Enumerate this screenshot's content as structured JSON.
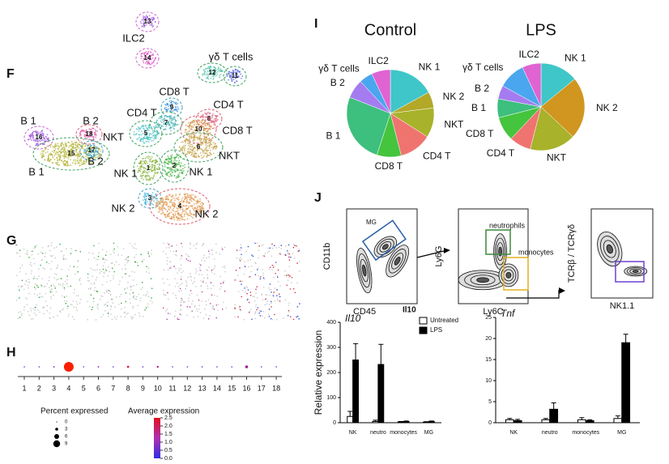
{
  "panels": [
    "F",
    "G",
    "H",
    "I",
    "J"
  ],
  "umap": {
    "clusters": [
      "13",
      "14",
      "12",
      "11",
      "9",
      "8",
      "7",
      "10",
      "5",
      "6",
      "18",
      "16",
      "15",
      "17",
      "1",
      "2",
      "3",
      "4"
    ],
    "cell_types": [
      "ILC2",
      "γδ T cells",
      "CD8 T",
      "CD4 T",
      "CD4 T",
      "CD8 T",
      "NKT",
      "NKT",
      "B 1",
      "B 2",
      "B 1",
      "B 2",
      "NK 1",
      "NK 1",
      "NK 2",
      "NK 2"
    ]
  },
  "flow": {
    "plots": [
      {
        "x": "CD45",
        "y": "CD11b",
        "gates": [
          "MG"
        ]
      },
      {
        "x": "Ly6C",
        "y": "Ly6G",
        "gates": [
          "neutrophils",
          "monocytes"
        ]
      },
      {
        "x": "NK1.1",
        "y": "TCRβ / TCRγδ",
        "gates": []
      }
    ],
    "note": "Il10"
  },
  "chart_data": [
    {
      "type": "dot",
      "categories": [
        "1",
        "2",
        "3",
        "4",
        "5",
        "6",
        "7",
        "8",
        "9",
        "10",
        "11",
        "12",
        "13",
        "14",
        "15",
        "16",
        "17",
        "18"
      ],
      "values": [
        0.3,
        0.3,
        0.5,
        9,
        0.3,
        0.5,
        0.3,
        1.2,
        0.3,
        1,
        0.3,
        0.3,
        0.3,
        0.3,
        0.3,
        2,
        0.3,
        0.3
      ],
      "color_values": [
        0.3,
        0.3,
        1,
        2.5,
        0.5,
        0.8,
        0.4,
        2,
        0.3,
        1.5,
        0.3,
        0.4,
        0.3,
        0.4,
        0.3,
        1.3,
        0.3,
        0.3
      ],
      "size_legend": {
        "title": "Percent expressed",
        "values": [
          0,
          3,
          6,
          9
        ]
      },
      "color_legend": {
        "title": "Average expression",
        "ticks": [
          2.5,
          {
            "value": 2,
            "label": "2.0"
          },
          1.5,
          {
            "value": 1,
            "label": "1.0"
          },
          0.5,
          {
            "value": 0,
            "label": "0.0"
          }
        ]
      }
    },
    {
      "type": "pie",
      "title": "Control",
      "categories": [
        "NK 1",
        "NK 2",
        "NKT",
        "CD4 T",
        "CD8 T",
        "B 1",
        "B 2",
        "γδ T cells",
        "ILC2"
      ],
      "values": [
        17,
        6,
        11,
        12,
        9,
        26,
        7,
        5,
        7
      ],
      "colors": [
        "#3fc6c8",
        "#b3a828",
        "#a8b22a",
        "#ef7470",
        "#45c43e",
        "#3dbf7e",
        "#a57cf0",
        "#4aa6ef",
        "#e063d2"
      ]
    },
    {
      "type": "pie",
      "title": "LPS",
      "categories": [
        "NK 1",
        "NK 2",
        "NKT",
        "CD4 T",
        "CD8 T",
        "B 1",
        "B 2",
        "γδ T cells",
        "ILC2"
      ],
      "values": [
        14,
        23,
        17,
        8,
        9,
        7,
        5,
        10,
        7
      ],
      "colors": [
        "#3fc6c8",
        "#d0961f",
        "#a8b22a",
        "#ef7470",
        "#45c43e",
        "#3dbf7e",
        "#a57cf0",
        "#4aa6ef",
        "#e063d2"
      ]
    },
    {
      "type": "bar",
      "title": "Il10",
      "ylabel": "Relative expression",
      "categories": [
        "NK",
        "neutro",
        "monocytes",
        "MG"
      ],
      "series": [
        {
          "name": "Untreated",
          "color": "#ffffff",
          "values": [
            25,
            5,
            3,
            2
          ],
          "errors": [
            20,
            5,
            2,
            2
          ]
        },
        {
          "name": "LPS",
          "color": "#000000",
          "values": [
            250,
            232,
            5,
            5
          ],
          "errors": [
            65,
            80,
            2,
            2
          ]
        }
      ],
      "ylim": [
        0,
        400
      ],
      "yticks": [
        0,
        100,
        200,
        300,
        400
      ]
    },
    {
      "type": "bar",
      "title": "Tnf",
      "categories": [
        "NK",
        "neutro",
        "monocytes",
        "MG"
      ],
      "series": [
        {
          "color": "#ffffff",
          "values": [
            0.7,
            0.7,
            0.7,
            1
          ],
          "errors": [
            0.3,
            0.3,
            0.5,
            0.6
          ]
        },
        {
          "color": "#000000",
          "values": [
            0.5,
            3.2,
            0.5,
            19
          ],
          "errors": [
            0.3,
            1.5,
            0.2,
            2
          ]
        }
      ],
      "ylim": [
        0,
        25
      ],
      "yticks": [
        0,
        5,
        10,
        15,
        20,
        25
      ]
    }
  ]
}
